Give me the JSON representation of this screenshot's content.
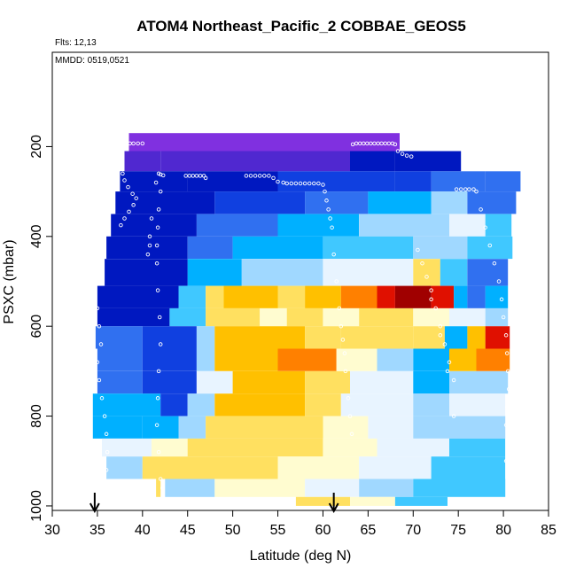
{
  "chart_data": {
    "type": "heatmap",
    "title": "ATOM4 Northeast_Pacific_2 COBBAE_GEOS5",
    "annotations": {
      "flights": "Flts: 12,13",
      "dates": "MMDD: 0519,0521"
    },
    "xlabel": "Latitude (deg N)",
    "ylabel": "PSXC (mbar)",
    "xlim": [
      30,
      85
    ],
    "ylim": [
      1010,
      -10
    ],
    "y_reversed": true,
    "x_ticks": [
      30,
      35,
      40,
      45,
      50,
      55,
      60,
      65,
      70,
      75,
      80,
      85
    ],
    "x_tick_labels": [
      "30",
      "35",
      "40",
      "45",
      "50",
      "55",
      "60",
      "65",
      "70",
      "75",
      "80",
      "85"
    ],
    "y_ticks": [
      200,
      400,
      600,
      800,
      1000
    ],
    "y_tick_labels": [
      "200",
      "400",
      "600",
      "800",
      "1000"
    ],
    "grid": false,
    "colors": {
      "scale": [
        "#1a00a0",
        "#5028d0",
        "#8030e0",
        "#0018c0",
        "#1040e0",
        "#3070f0",
        "#00b0ff",
        "#40c8ff",
        "#a0d8ff",
        "#e8f4ff",
        "#fffcd0",
        "#ffe060",
        "#ffc000",
        "#ff8000",
        "#e01000",
        "#a00000"
      ]
    },
    "layers": [
      {
        "p_min": 170,
        "p_max": 210,
        "segments": [
          [
            38.5,
            52,
            2
          ],
          [
            52,
            68.5,
            2
          ]
        ]
      },
      {
        "p_min": 210,
        "p_max": 255,
        "segments": [
          [
            38,
            42,
            1
          ],
          [
            42,
            55,
            1
          ],
          [
            55,
            63,
            1
          ],
          [
            63,
            68,
            3
          ],
          [
            68,
            75.3,
            3
          ]
        ]
      },
      {
        "p_min": 255,
        "p_max": 300,
        "segments": [
          [
            37.5,
            45,
            3
          ],
          [
            45,
            55,
            3
          ],
          [
            55,
            68,
            4
          ],
          [
            68,
            72,
            4
          ],
          [
            72,
            78,
            5
          ],
          [
            78,
            81.9,
            5
          ]
        ]
      },
      {
        "p_min": 300,
        "p_max": 350,
        "segments": [
          [
            37,
            48,
            3
          ],
          [
            48,
            58,
            4
          ],
          [
            58,
            65,
            5
          ],
          [
            65,
            72,
            6
          ],
          [
            72,
            76,
            8
          ],
          [
            76,
            81.4,
            5
          ]
        ]
      },
      {
        "p_min": 350,
        "p_max": 400,
        "segments": [
          [
            36.5,
            46,
            3
          ],
          [
            46,
            55,
            5
          ],
          [
            55,
            64,
            6
          ],
          [
            64,
            74,
            8
          ],
          [
            74,
            78,
            9
          ],
          [
            78,
            80.9,
            7
          ]
        ]
      },
      {
        "p_min": 400,
        "p_max": 450,
        "segments": [
          [
            36,
            45,
            3
          ],
          [
            45,
            50,
            5
          ],
          [
            50,
            60,
            6
          ],
          [
            60,
            70,
            7
          ],
          [
            70,
            76,
            8
          ],
          [
            76,
            81,
            7
          ]
        ]
      },
      {
        "p_min": 450,
        "p_max": 510,
        "segments": [
          [
            35.8,
            45,
            3
          ],
          [
            45,
            51,
            6
          ],
          [
            51,
            60,
            8
          ],
          [
            60,
            70,
            9
          ],
          [
            70,
            73,
            11
          ],
          [
            73,
            76,
            7
          ],
          [
            76,
            80.5,
            5
          ]
        ]
      },
      {
        "p_min": 510,
        "p_max": 560,
        "segments": [
          [
            35,
            44,
            3
          ],
          [
            44,
            47,
            7
          ],
          [
            47,
            49,
            11
          ],
          [
            49,
            55,
            12
          ],
          [
            55,
            58,
            11
          ],
          [
            58,
            62,
            12
          ],
          [
            62,
            66,
            13
          ],
          [
            66,
            68,
            14
          ],
          [
            68,
            72,
            15
          ],
          [
            72,
            74.5,
            14
          ],
          [
            74.5,
            76,
            6
          ],
          [
            76,
            78,
            5
          ],
          [
            78,
            80.5,
            6
          ]
        ]
      },
      {
        "p_min": 560,
        "p_max": 600,
        "segments": [
          [
            35,
            43,
            3
          ],
          [
            43,
            47,
            7
          ],
          [
            47,
            53,
            11
          ],
          [
            53,
            56,
            10
          ],
          [
            56,
            60,
            11
          ],
          [
            60,
            64,
            10
          ],
          [
            64,
            70,
            11
          ],
          [
            70,
            74,
            10
          ],
          [
            74,
            78,
            9
          ],
          [
            78,
            80.5,
            8
          ]
        ]
      },
      {
        "p_min": 600,
        "p_max": 650,
        "segments": [
          [
            34.8,
            40,
            5
          ],
          [
            40,
            46,
            4
          ],
          [
            46,
            48,
            8
          ],
          [
            48,
            58,
            12
          ],
          [
            58,
            62,
            11
          ],
          [
            62,
            70,
            11
          ],
          [
            70,
            73.5,
            11
          ],
          [
            73.5,
            76,
            6
          ],
          [
            76,
            78,
            12
          ],
          [
            78,
            80.7,
            14
          ]
        ]
      },
      {
        "p_min": 650,
        "p_max": 700,
        "segments": [
          [
            35,
            40,
            5
          ],
          [
            40,
            46,
            4
          ],
          [
            46,
            48,
            8
          ],
          [
            48,
            55,
            12
          ],
          [
            55,
            61.5,
            13
          ],
          [
            61.5,
            66,
            10
          ],
          [
            66,
            70,
            8
          ],
          [
            70,
            74,
            6
          ],
          [
            74,
            77,
            12
          ],
          [
            77,
            80.7,
            13
          ]
        ]
      },
      {
        "p_min": 700,
        "p_max": 750,
        "segments": [
          [
            35,
            40,
            5
          ],
          [
            40,
            46,
            4
          ],
          [
            46,
            50,
            9
          ],
          [
            50,
            58,
            12
          ],
          [
            58,
            63,
            11
          ],
          [
            63,
            70,
            9
          ],
          [
            70,
            74,
            6
          ],
          [
            74,
            80.5,
            8
          ]
        ]
      },
      {
        "p_min": 750,
        "p_max": 800,
        "segments": [
          [
            34.5,
            42,
            6
          ],
          [
            42,
            45,
            4
          ],
          [
            45,
            48,
            8
          ],
          [
            48,
            58,
            12
          ],
          [
            58,
            62,
            11
          ],
          [
            62,
            70,
            9
          ],
          [
            70,
            74,
            8
          ],
          [
            74,
            80.2,
            9
          ]
        ]
      },
      {
        "p_min": 800,
        "p_max": 850,
        "segments": [
          [
            34.5,
            40,
            6
          ],
          [
            40,
            44,
            6
          ],
          [
            44,
            47,
            8
          ],
          [
            47,
            60,
            11
          ],
          [
            60,
            65,
            10
          ],
          [
            65,
            70,
            9
          ],
          [
            70,
            80.2,
            8
          ]
        ]
      },
      {
        "p_min": 850,
        "p_max": 890,
        "segments": [
          [
            35.5,
            41,
            9
          ],
          [
            41,
            45,
            10
          ],
          [
            45,
            60,
            11
          ],
          [
            60,
            66,
            10
          ],
          [
            66,
            74,
            9
          ],
          [
            74,
            80.2,
            7
          ]
        ]
      },
      {
        "p_min": 890,
        "p_max": 940,
        "segments": [
          [
            36,
            40,
            8
          ],
          [
            40,
            55,
            11
          ],
          [
            55,
            64,
            10
          ],
          [
            64,
            72,
            9
          ],
          [
            72,
            80.2,
            7
          ]
        ]
      },
      {
        "p_min": 940,
        "p_max": 980,
        "segments": [
          [
            41.5,
            42,
            11
          ],
          [
            42.5,
            48,
            8
          ],
          [
            48,
            58,
            10
          ],
          [
            58,
            64,
            9
          ],
          [
            64,
            70,
            8
          ],
          [
            70,
            80.2,
            7
          ]
        ]
      },
      {
        "p_min": 980,
        "p_max": 1000,
        "segments": [
          [
            57,
            63,
            11
          ],
          [
            63,
            68,
            10
          ],
          [
            68,
            73.8,
            7
          ]
        ]
      }
    ],
    "flight_track": [
      [
        38.2,
        195
      ],
      [
        38.6,
        193
      ],
      [
        39.0,
        193
      ],
      [
        39.5,
        193
      ],
      [
        40.0,
        193
      ],
      [
        37.8,
        260
      ],
      [
        38.0,
        275
      ],
      [
        38.4,
        290
      ],
      [
        38.9,
        305
      ],
      [
        39.3,
        315
      ],
      [
        39.0,
        330
      ],
      [
        38.5,
        345
      ],
      [
        38.0,
        360
      ],
      [
        37.6,
        375
      ],
      [
        40.8,
        400
      ],
      [
        40.8,
        420
      ],
      [
        40.6,
        440
      ],
      [
        41.0,
        360
      ],
      [
        41.5,
        280
      ],
      [
        41.8,
        260
      ],
      [
        42.0,
        262
      ],
      [
        42.3,
        264
      ],
      [
        42.0,
        300
      ],
      [
        41.8,
        340
      ],
      [
        41.7,
        380
      ],
      [
        41.6,
        420
      ],
      [
        41.6,
        460
      ],
      [
        41.7,
        520
      ],
      [
        41.9,
        580
      ],
      [
        42.0,
        640
      ],
      [
        41.8,
        700
      ],
      [
        41.7,
        760
      ],
      [
        41.6,
        820
      ],
      [
        41.8,
        880
      ],
      [
        42.0,
        940
      ],
      [
        42.2,
        960
      ],
      [
        44.8,
        265
      ],
      [
        45.2,
        265
      ],
      [
        45.6,
        265
      ],
      [
        46.0,
        265
      ],
      [
        46.4,
        265
      ],
      [
        46.8,
        265
      ],
      [
        47.0,
        270
      ],
      [
        51.5,
        265
      ],
      [
        52.0,
        265
      ],
      [
        52.5,
        265
      ],
      [
        53.0,
        265
      ],
      [
        53.5,
        265
      ],
      [
        54.0,
        265
      ],
      [
        54.5,
        270
      ],
      [
        55.0,
        278
      ],
      [
        55.6,
        280
      ],
      [
        56.0,
        282
      ],
      [
        56.5,
        282
      ],
      [
        57.0,
        282
      ],
      [
        57.5,
        282
      ],
      [
        58.0,
        282
      ],
      [
        58.5,
        282
      ],
      [
        59.0,
        282
      ],
      [
        59.5,
        282
      ],
      [
        60.0,
        285
      ],
      [
        60.2,
        300
      ],
      [
        60.4,
        320
      ],
      [
        60.6,
        340
      ],
      [
        60.8,
        360
      ],
      [
        61.0,
        380
      ],
      [
        61.2,
        440
      ],
      [
        61.5,
        500
      ],
      [
        61.8,
        560
      ],
      [
        62.0,
        600
      ],
      [
        62.2,
        630
      ],
      [
        62.4,
        660
      ],
      [
        62.5,
        700
      ],
      [
        62.8,
        760
      ],
      [
        63.0,
        800
      ],
      [
        63.2,
        840
      ],
      [
        63.3,
        195
      ],
      [
        63.7,
        193
      ],
      [
        64.1,
        193
      ],
      [
        64.5,
        193
      ],
      [
        64.9,
        193
      ],
      [
        65.3,
        193
      ],
      [
        65.7,
        193
      ],
      [
        66.1,
        193
      ],
      [
        66.5,
        193
      ],
      [
        66.9,
        193
      ],
      [
        67.3,
        193
      ],
      [
        67.7,
        193
      ],
      [
        68.0,
        195
      ],
      [
        68.3,
        210
      ],
      [
        68.8,
        216
      ],
      [
        69.3,
        220
      ],
      [
        69.8,
        222
      ],
      [
        70.5,
        430
      ],
      [
        71.0,
        460
      ],
      [
        71.5,
        490
      ],
      [
        72.0,
        520
      ],
      [
        72.5,
        560
      ],
      [
        73.0,
        600
      ],
      [
        73.5,
        640
      ],
      [
        74.0,
        680
      ],
      [
        74.5,
        720
      ],
      [
        74.5,
        800
      ],
      [
        73.8,
        700
      ],
      [
        73.0,
        620
      ],
      [
        72.0,
        540
      ],
      [
        74.8,
        295
      ],
      [
        75.3,
        295
      ],
      [
        75.8,
        295
      ],
      [
        76.2,
        295
      ],
      [
        76.7,
        295
      ],
      [
        77.0,
        300
      ],
      [
        77.5,
        340
      ],
      [
        78.0,
        380
      ],
      [
        78.5,
        420
      ],
      [
        79.0,
        460
      ],
      [
        79.5,
        500
      ],
      [
        79.8,
        540
      ],
      [
        80.0,
        580
      ],
      [
        80.3,
        620
      ],
      [
        80.4,
        660
      ],
      [
        80.5,
        700
      ],
      [
        80.6,
        740
      ],
      [
        80.4,
        780
      ],
      [
        80.3,
        820
      ],
      [
        80.3,
        900
      ],
      [
        35.0,
        560
      ],
      [
        35.2,
        600
      ],
      [
        35.4,
        640
      ],
      [
        35.0,
        680
      ],
      [
        35.2,
        720
      ],
      [
        35.5,
        760
      ],
      [
        35.8,
        800
      ],
      [
        36.0,
        840
      ],
      [
        36.1,
        880
      ],
      [
        36.0,
        920
      ]
    ],
    "markers": [
      {
        "x": 34.7,
        "label": "arrow"
      },
      {
        "x": 61.2,
        "label": "arrow"
      }
    ]
  }
}
